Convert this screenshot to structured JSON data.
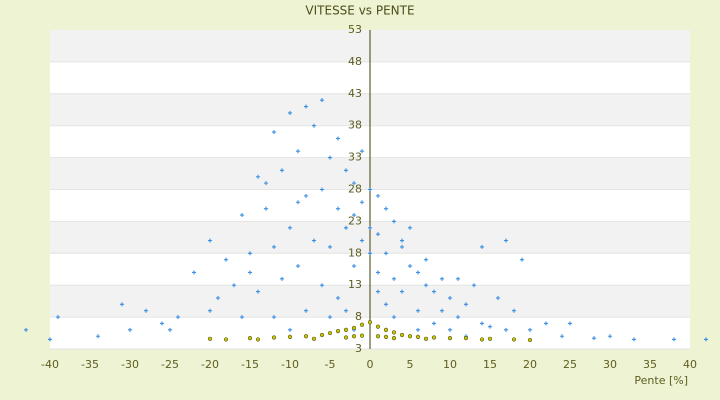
{
  "chart_data": {
    "type": "scatter",
    "title": "VITESSE vs PENTE",
    "x_label": "Pente [%]",
    "xlim": [
      -40,
      40
    ],
    "xticks": [
      -40,
      -35,
      -30,
      -25,
      -20,
      -15,
      -10,
      -5,
      0,
      5,
      10,
      15,
      20,
      25,
      30,
      35,
      40
    ],
    "ylim": [
      3,
      53
    ],
    "yticks": [
      3,
      8,
      13,
      18,
      23,
      28,
      33,
      38,
      43,
      48,
      53
    ],
    "grid": true,
    "series": [
      {
        "color": "#3b8fe0",
        "x": [
          -10,
          -8,
          -6,
          -12,
          -7,
          -4,
          -9,
          -5,
          -3,
          -14,
          -11,
          -2,
          0,
          1,
          -1,
          2,
          3,
          -6,
          -8,
          -16,
          -13,
          -4,
          -3,
          -1,
          1,
          2,
          4,
          5,
          6,
          3,
          7,
          8,
          10,
          12,
          9,
          11,
          14,
          15,
          17,
          20,
          22,
          25,
          24,
          18,
          16,
          13,
          11,
          5,
          4,
          2,
          1,
          0,
          -2,
          -5,
          -7,
          -10,
          -12,
          -15,
          -18,
          -20,
          -22,
          -17,
          -14,
          -11,
          -9,
          -6,
          -4,
          -3,
          -8,
          -12,
          -16,
          -20,
          -24,
          -26,
          -30,
          -31,
          -28,
          -34,
          -39,
          -43,
          -40,
          33,
          38,
          42,
          30,
          28,
          -25,
          -19,
          -13,
          -9,
          -1,
          -2,
          0,
          1,
          3,
          6,
          8,
          10,
          12,
          6,
          4,
          7,
          9,
          17,
          19,
          14,
          -15,
          -5,
          -10,
          -2
        ],
        "y": [
          40,
          41,
          42,
          37,
          38,
          36,
          34,
          33,
          31,
          30,
          31,
          29,
          28,
          27,
          26,
          25,
          23,
          28,
          27,
          24,
          25,
          25,
          22,
          20,
          21,
          18,
          19,
          16,
          15,
          14,
          13,
          12,
          11,
          10,
          9,
          8,
          7,
          6.5,
          6,
          6,
          7,
          7,
          5,
          9,
          11,
          13,
          14,
          22,
          12,
          10,
          15,
          18,
          16,
          19,
          20,
          22,
          19,
          18,
          17,
          20,
          15,
          13,
          12,
          14,
          16,
          13,
          11,
          9,
          9,
          8,
          8,
          9,
          8,
          7,
          6,
          10,
          9,
          5,
          8,
          6,
          4.5,
          4.5,
          4.5,
          4.5,
          5,
          4.7,
          6,
          11,
          29,
          26,
          34,
          24,
          22,
          12,
          8,
          9,
          7,
          6,
          5,
          6,
          20,
          17,
          14,
          20,
          17,
          19,
          15,
          8,
          6,
          6
        ]
      },
      {
        "color": "#c9c400",
        "x": [
          -20,
          -15,
          -12,
          -10,
          -8,
          -6,
          -5,
          -4,
          -3,
          -2,
          -1,
          0,
          1,
          2,
          3,
          4,
          5,
          6,
          8,
          10,
          12,
          15,
          18,
          -3,
          -1,
          1,
          3,
          -7,
          7,
          -14,
          14,
          -18,
          20,
          -2,
          2
        ],
        "y": [
          4.6,
          4.7,
          4.8,
          4.9,
          5,
          5.2,
          5.5,
          5.8,
          6,
          6.3,
          6.8,
          7.2,
          6.5,
          6,
          5.6,
          5.2,
          5,
          4.9,
          4.8,
          4.7,
          4.7,
          4.6,
          4.5,
          4.8,
          5.1,
          5,
          4.7,
          4.6,
          4.6,
          4.5,
          4.5,
          4.5,
          4.4,
          5,
          4.9
        ]
      }
    ]
  }
}
